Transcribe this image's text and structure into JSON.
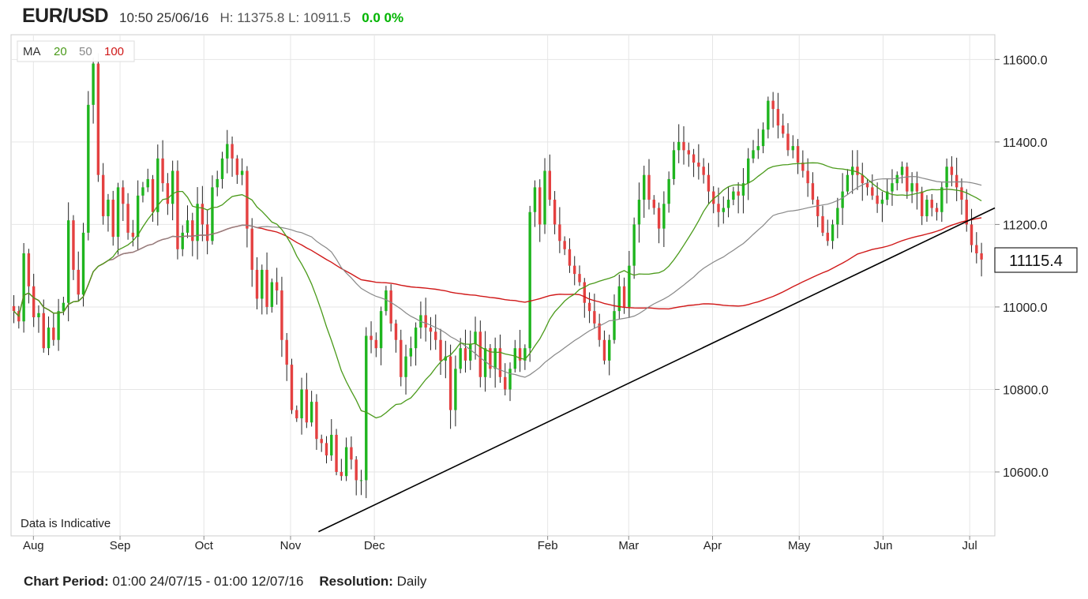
{
  "header": {
    "symbol": "EUR/USD",
    "time": "10:50 25/06/16",
    "high_low": "H: 11375.8 L: 10911.5",
    "change": "0.0 0%"
  },
  "legend": {
    "ma_label": "MA",
    "ma20": "20",
    "ma50": "50",
    "ma100": "100",
    "colors": {
      "ma20": "#4a9a1a",
      "ma50": "#888888",
      "ma100": "#d01818"
    }
  },
  "note": "Data is Indicative",
  "footer": {
    "period_label": "Chart Period:",
    "period_value": "01:00 24/07/15 - 01:00 12/07/16",
    "resolution_label": "Resolution:",
    "resolution_value": "Daily"
  },
  "chart_data": {
    "type": "candlestick",
    "y_ticks": [
      10600,
      10800,
      11000,
      11200,
      11400,
      11600
    ],
    "y_tick_labels": [
      "10600.0",
      "10800.0",
      "11000.0",
      "11200.0",
      "11400.0",
      "11600.0"
    ],
    "ylim": [
      10445,
      11660
    ],
    "x_tick_labels": [
      "Aug",
      "Sep",
      "Oct",
      "Nov",
      "Dec",
      "Feb",
      "Mar",
      "Apr",
      "May",
      "Jun",
      "Jul"
    ],
    "x_tick_days": [
      8,
      39,
      69,
      100,
      130,
      192,
      221,
      251,
      282,
      312,
      343
    ],
    "xlim": [
      0,
      352
    ],
    "last_price": "11115.4",
    "last_value": 11115.4,
    "trendline": {
      "start": [
        110,
        10455
      ],
      "end": [
        352,
        11240
      ]
    },
    "up_color": "#1fb51f",
    "down_color": "#e44040",
    "candle_closes": [
      10990,
      10965,
      11130,
      11050,
      10975,
      10985,
      10900,
      10950,
      10920,
      10990,
      11010,
      11210,
      11090,
      11030,
      11180,
      11490,
      11590,
      11320,
      11220,
      11260,
      11170,
      11290,
      11250,
      11180,
      11170,
      11270,
      11290,
      11310,
      11230,
      11360,
      11300,
      11250,
      11330,
      11140,
      11180,
      11210,
      11160,
      11250,
      11200,
      11160,
      11290,
      11310,
      11360,
      11395,
      11360,
      11320,
      11330,
      11190,
      11090,
      11020,
      11090,
      11000,
      11060,
      11040,
      10920,
      10860,
      10750,
      10730,
      10800,
      10720,
      10770,
      10680,
      10670,
      10640,
      10690,
      10600,
      10590,
      10660,
      10630,
      10580,
      10580,
      10930,
      10920,
      10900,
      10990,
      11040,
      10960,
      10920,
      10830,
      10880,
      10900,
      10950,
      10980,
      10950,
      10940,
      10920,
      10870,
      10880,
      10750,
      10850,
      10900,
      10870,
      10910,
      10940,
      10830,
      10900,
      10850,
      10900,
      10830,
      10800,
      10850,
      10900,
      10870,
      10900,
      11230,
      11290,
      11200,
      11330,
      11260,
      11200,
      11160,
      11140,
      11100,
      11080,
      11060,
      11010,
      10990,
      10960,
      10920,
      10870,
      10920,
      10990,
      11050,
      11000,
      11100,
      11200,
      11260,
      11320,
      11260,
      11240,
      11190,
      11250,
      11310,
      11380,
      11400,
      11380,
      11370,
      11350,
      11340,
      11320,
      11280,
      11250,
      11230,
      11240,
      11260,
      11280,
      11270,
      11300,
      11360,
      11380,
      11390,
      11430,
      11500,
      11480,
      11440,
      11420,
      11380,
      11390,
      11350,
      11330,
      11300,
      11260,
      11220,
      11180,
      11160,
      11200,
      11240,
      11280,
      11320,
      11340,
      11320,
      11300,
      11290,
      11270,
      11250,
      11260,
      11280,
      11300,
      11320,
      11340,
      11280,
      11300,
      11280,
      11220,
      11260,
      11240,
      11230,
      11290,
      11340,
      11320,
      11290,
      11260,
      11200,
      11150,
      11130,
      11115
    ]
  }
}
